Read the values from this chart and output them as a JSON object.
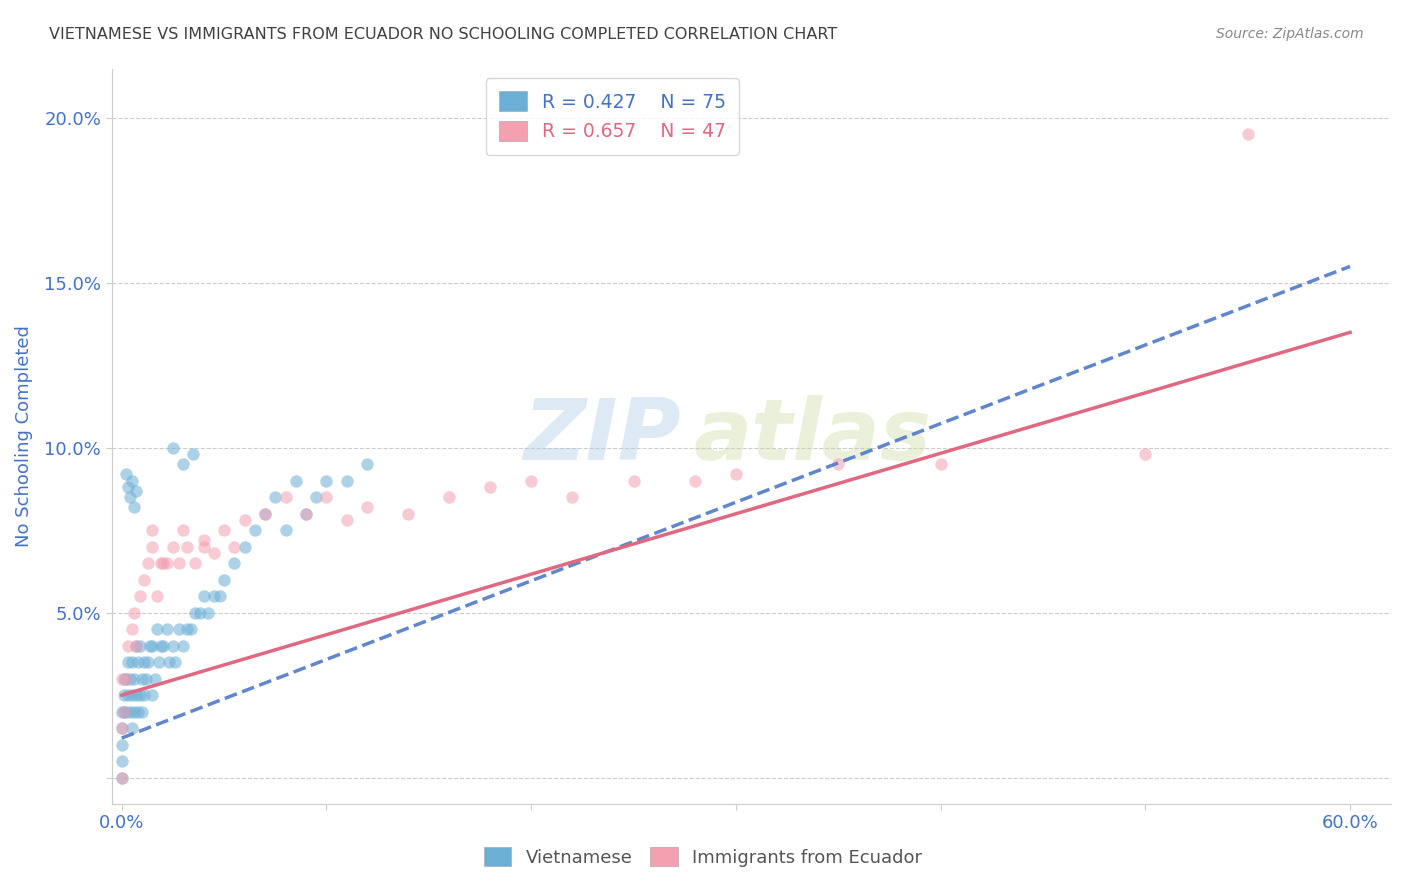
{
  "title": "VIETNAMESE VS IMMIGRANTS FROM ECUADOR NO SCHOOLING COMPLETED CORRELATION CHART",
  "source": "Source: ZipAtlas.com",
  "ylabel_label": "No Schooling Completed",
  "watermark_zip": "ZIP",
  "watermark_atlas": "atlas",
  "xlim": [
    -0.005,
    0.62
  ],
  "ylim": [
    -0.008,
    0.215
  ],
  "xticks": [
    0.0,
    0.1,
    0.2,
    0.3,
    0.4,
    0.5,
    0.6
  ],
  "xticklabels": [
    "0.0%",
    "",
    "",
    "",
    "",
    "",
    "60.0%"
  ],
  "yticks": [
    0.0,
    0.05,
    0.1,
    0.15,
    0.2
  ],
  "yticklabels": [
    "",
    "5.0%",
    "10.0%",
    "15.0%",
    "20.0%"
  ],
  "legend_R1": "R = 0.427",
  "legend_N1": "N = 75",
  "legend_R2": "R = 0.657",
  "legend_N2": "N = 47",
  "blue_color": "#6baed6",
  "pink_color": "#f4a0b0",
  "blue_line_color": "#4472c4",
  "pink_line_color": "#e06880",
  "title_color": "#404040",
  "tick_color": "#4472c4",
  "grid_color": "#cccccc",
  "scatter_alpha": 0.55,
  "scatter_size": 80,
  "viet_x": [
    0.0,
    0.0,
    0.0,
    0.0,
    0.0,
    0.001,
    0.001,
    0.001,
    0.002,
    0.002,
    0.003,
    0.003,
    0.004,
    0.004,
    0.005,
    0.005,
    0.005,
    0.006,
    0.006,
    0.007,
    0.007,
    0.008,
    0.008,
    0.009,
    0.009,
    0.01,
    0.01,
    0.011,
    0.011,
    0.012,
    0.013,
    0.014,
    0.015,
    0.015,
    0.016,
    0.017,
    0.018,
    0.019,
    0.02,
    0.022,
    0.023,
    0.025,
    0.026,
    0.028,
    0.03,
    0.032,
    0.034,
    0.036,
    0.038,
    0.04,
    0.042,
    0.045,
    0.048,
    0.05,
    0.055,
    0.06,
    0.065,
    0.07,
    0.075,
    0.08,
    0.085,
    0.09,
    0.095,
    0.1,
    0.11,
    0.12,
    0.025,
    0.03,
    0.035,
    0.002,
    0.003,
    0.004,
    0.005,
    0.006,
    0.007
  ],
  "viet_y": [
    0.0,
    0.005,
    0.01,
    0.015,
    0.02,
    0.02,
    0.025,
    0.03,
    0.02,
    0.03,
    0.025,
    0.035,
    0.02,
    0.03,
    0.015,
    0.025,
    0.035,
    0.02,
    0.03,
    0.025,
    0.04,
    0.02,
    0.035,
    0.025,
    0.04,
    0.02,
    0.03,
    0.025,
    0.035,
    0.03,
    0.035,
    0.04,
    0.025,
    0.04,
    0.03,
    0.045,
    0.035,
    0.04,
    0.04,
    0.045,
    0.035,
    0.04,
    0.035,
    0.045,
    0.04,
    0.045,
    0.045,
    0.05,
    0.05,
    0.055,
    0.05,
    0.055,
    0.055,
    0.06,
    0.065,
    0.07,
    0.075,
    0.08,
    0.085,
    0.075,
    0.09,
    0.08,
    0.085,
    0.09,
    0.09,
    0.095,
    0.1,
    0.095,
    0.098,
    0.092,
    0.088,
    0.085,
    0.09,
    0.082,
    0.087
  ],
  "ecu_x": [
    0.0,
    0.0,
    0.0,
    0.001,
    0.002,
    0.003,
    0.005,
    0.006,
    0.007,
    0.009,
    0.011,
    0.013,
    0.015,
    0.017,
    0.019,
    0.022,
    0.025,
    0.028,
    0.032,
    0.036,
    0.04,
    0.045,
    0.05,
    0.055,
    0.06,
    0.07,
    0.08,
    0.09,
    0.1,
    0.11,
    0.12,
    0.14,
    0.16,
    0.18,
    0.2,
    0.22,
    0.25,
    0.28,
    0.3,
    0.35,
    0.4,
    0.5,
    0.55,
    0.015,
    0.02,
    0.03,
    0.04
  ],
  "ecu_y": [
    0.0,
    0.015,
    0.03,
    0.02,
    0.03,
    0.04,
    0.045,
    0.05,
    0.04,
    0.055,
    0.06,
    0.065,
    0.07,
    0.055,
    0.065,
    0.065,
    0.07,
    0.065,
    0.07,
    0.065,
    0.072,
    0.068,
    0.075,
    0.07,
    0.078,
    0.08,
    0.085,
    0.08,
    0.085,
    0.078,
    0.082,
    0.08,
    0.085,
    0.088,
    0.09,
    0.085,
    0.09,
    0.09,
    0.092,
    0.095,
    0.095,
    0.098,
    0.195,
    0.075,
    0.065,
    0.075,
    0.07
  ],
  "viet_trend_x": [
    0.0,
    0.6
  ],
  "viet_trend_y": [
    0.012,
    0.155
  ],
  "ecu_trend_x": [
    0.0,
    0.6
  ],
  "ecu_trend_y": [
    0.025,
    0.135
  ]
}
